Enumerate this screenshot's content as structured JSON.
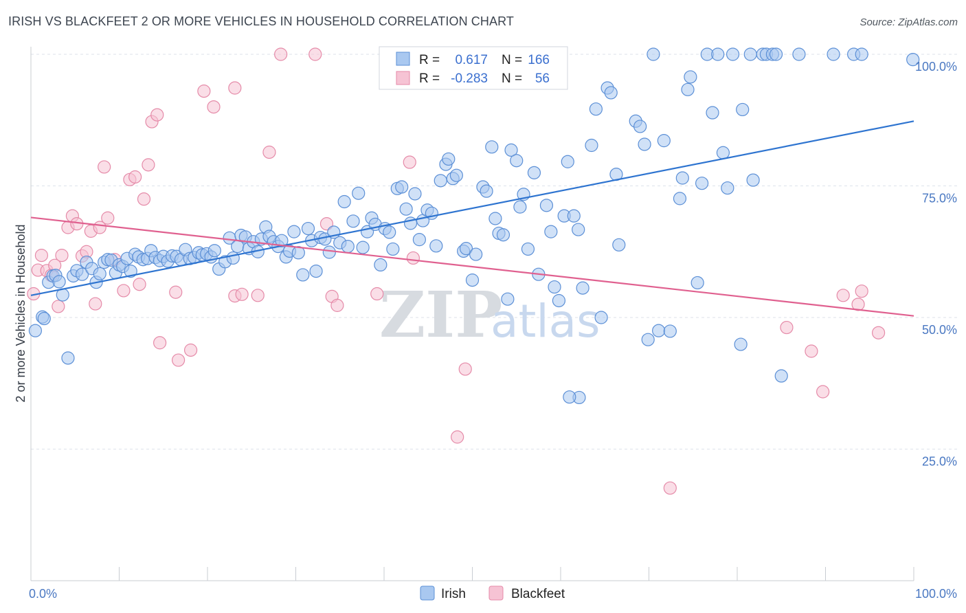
{
  "title": "IRISH VS BLACKFEET 2 OR MORE VEHICLES IN HOUSEHOLD CORRELATION CHART",
  "source": "Source: ZipAtlas.com",
  "watermark": {
    "zip": "ZIP",
    "atlas": "atlas"
  },
  "colors": {
    "irish_fill": "#a9c8f0",
    "irish_stroke": "#5b8fd6",
    "irish_line": "#2e74d0",
    "blackfeet_fill": "#f6c3d4",
    "blackfeet_stroke": "#e58aa8",
    "blackfeet_line": "#e0608f",
    "grid": "#dde2ea",
    "tick_text": "#4a78c2"
  },
  "stats": [
    {
      "series": "Irish",
      "r_label": "R =",
      "r_value": "0.617",
      "n_label": "N =",
      "n_value": "166"
    },
    {
      "series": "Blackfeet",
      "r_label": "R =",
      "r_value": "-0.283",
      "n_label": "N =",
      "n_value": "56"
    }
  ],
  "chart_data": {
    "type": "scatter",
    "title": "IRISH VS BLACKFEET 2 OR MORE VEHICLES IN HOUSEHOLD CORRELATION CHART",
    "xlabel": "",
    "ylabel": "2 or more Vehicles in Household",
    "xlim": [
      0,
      100
    ],
    "ylim": [
      0,
      103
    ],
    "x_tick_labels": [
      "0.0%",
      "100.0%"
    ],
    "y_ticks": [
      25,
      50,
      75,
      100
    ],
    "y_tick_labels": [
      "25.0%",
      "50.0%",
      "75.0%",
      "100.0%"
    ],
    "legend": [
      "Irish",
      "Blackfeet"
    ],
    "series": [
      {
        "name": "Irish",
        "trend": {
          "x": [
            0,
            100
          ],
          "y": [
            54.2,
            87.3
          ]
        },
        "points": [
          [
            0.5,
            47.5
          ],
          [
            1.3,
            50.1
          ],
          [
            1.5,
            49.8
          ],
          [
            2.0,
            56.7
          ],
          [
            2.5,
            57.9
          ],
          [
            2.8,
            58.0
          ],
          [
            3.2,
            56.8
          ],
          [
            3.6,
            54.3
          ],
          [
            4.2,
            42.3
          ],
          [
            4.8,
            57.9
          ],
          [
            5.2,
            58.9
          ],
          [
            5.8,
            58.2
          ],
          [
            6.3,
            60.5
          ],
          [
            6.9,
            59.3
          ],
          [
            7.4,
            56.7
          ],
          [
            7.8,
            58.3
          ],
          [
            8.3,
            60.5
          ],
          [
            8.7,
            61.0
          ],
          [
            9.1,
            60.9
          ],
          [
            9.6,
            58.5
          ],
          [
            10.0,
            60.0
          ],
          [
            10.4,
            59.7
          ],
          [
            10.9,
            61.2
          ],
          [
            11.3,
            58.8
          ],
          [
            11.8,
            62.0
          ],
          [
            12.2,
            61.5
          ],
          [
            12.7,
            61.0
          ],
          [
            13.2,
            61.2
          ],
          [
            13.6,
            62.7
          ],
          [
            14.1,
            61.4
          ],
          [
            14.6,
            60.8
          ],
          [
            15.0,
            61.6
          ],
          [
            15.5,
            60.7
          ],
          [
            16.0,
            61.7
          ],
          [
            16.5,
            61.6
          ],
          [
            17.0,
            61.0
          ],
          [
            17.5,
            62.9
          ],
          [
            18.0,
            61.2
          ],
          [
            18.5,
            61.4
          ],
          [
            19.0,
            62.3
          ],
          [
            19.4,
            61.9
          ],
          [
            19.9,
            62.1
          ],
          [
            20.4,
            61.5
          ],
          [
            20.8,
            62.7
          ],
          [
            21.3,
            59.2
          ],
          [
            22.0,
            60.6
          ],
          [
            22.5,
            65.1
          ],
          [
            22.9,
            61.3
          ],
          [
            23.4,
            63.5
          ],
          [
            23.8,
            65.6
          ],
          [
            24.3,
            65.3
          ],
          [
            24.7,
            63.1
          ],
          [
            25.2,
            64.4
          ],
          [
            25.7,
            62.5
          ],
          [
            26.1,
            64.9
          ],
          [
            26.6,
            67.2
          ],
          [
            27.0,
            65.4
          ],
          [
            27.5,
            64.4
          ],
          [
            28.0,
            63.5
          ],
          [
            28.4,
            64.6
          ],
          [
            28.9,
            61.5
          ],
          [
            29.3,
            62.6
          ],
          [
            29.8,
            66.3
          ],
          [
            30.3,
            62.3
          ],
          [
            30.8,
            58.1
          ],
          [
            31.4,
            66.9
          ],
          [
            31.8,
            64.6
          ],
          [
            32.3,
            58.8
          ],
          [
            32.8,
            65.2
          ],
          [
            33.3,
            64.9
          ],
          [
            33.8,
            62.4
          ],
          [
            34.3,
            66.2
          ],
          [
            35.0,
            64.2
          ],
          [
            35.5,
            72.0
          ],
          [
            35.9,
            63.5
          ],
          [
            36.5,
            68.3
          ],
          [
            37.1,
            73.6
          ],
          [
            37.6,
            63.3
          ],
          [
            38.1,
            66.3
          ],
          [
            38.6,
            68.9
          ],
          [
            39.0,
            67.7
          ],
          [
            39.6,
            60.0
          ],
          [
            40.1,
            66.9
          ],
          [
            40.6,
            66.2
          ],
          [
            41.0,
            63.0
          ],
          [
            41.5,
            74.5
          ],
          [
            42.0,
            74.8
          ],
          [
            42.5,
            70.6
          ],
          [
            43.0,
            67.9
          ],
          [
            43.5,
            73.5
          ],
          [
            44.0,
            64.8
          ],
          [
            44.4,
            68.4
          ],
          [
            44.9,
            70.4
          ],
          [
            45.4,
            69.8
          ],
          [
            45.9,
            63.6
          ],
          [
            46.4,
            76.0
          ],
          [
            47.0,
            79.1
          ],
          [
            47.3,
            80.1
          ],
          [
            47.8,
            76.4
          ],
          [
            48.2,
            77.0
          ],
          [
            49.0,
            62.6
          ],
          [
            49.3,
            63.1
          ],
          [
            50.0,
            57.1
          ],
          [
            50.4,
            62.0
          ],
          [
            51.2,
            74.8
          ],
          [
            51.6,
            74.0
          ],
          [
            52.2,
            82.4
          ],
          [
            52.6,
            68.8
          ],
          [
            53.0,
            66.0
          ],
          [
            53.5,
            65.7
          ],
          [
            54.0,
            53.5
          ],
          [
            54.4,
            81.8
          ],
          [
            55.0,
            79.8
          ],
          [
            55.4,
            71.0
          ],
          [
            55.8,
            73.4
          ],
          [
            56.3,
            63.0
          ],
          [
            57.0,
            77.5
          ],
          [
            57.5,
            58.2
          ],
          [
            58.4,
            71.3
          ],
          [
            58.9,
            66.3
          ],
          [
            59.3,
            55.8
          ],
          [
            59.8,
            53.2
          ],
          [
            60.4,
            69.3
          ],
          [
            60.8,
            79.6
          ],
          [
            61.5,
            69.3
          ],
          [
            62.0,
            66.7
          ],
          [
            62.5,
            55.6
          ],
          [
            63.5,
            82.7
          ],
          [
            64.0,
            89.6
          ],
          [
            64.6,
            50.0
          ],
          [
            65.3,
            93.6
          ],
          [
            65.7,
            92.7
          ],
          [
            66.3,
            77.2
          ],
          [
            66.6,
            63.8
          ],
          [
            68.5,
            87.3
          ],
          [
            69.0,
            86.3
          ],
          [
            69.5,
            82.9
          ],
          [
            69.9,
            45.8
          ],
          [
            70.5,
            100.0
          ],
          [
            71.1,
            47.5
          ],
          [
            71.7,
            83.6
          ],
          [
            72.4,
            47.4
          ],
          [
            73.5,
            72.6
          ],
          [
            73.8,
            76.5
          ],
          [
            74.4,
            93.3
          ],
          [
            74.7,
            95.7
          ],
          [
            75.5,
            56.6
          ],
          [
            76.0,
            75.5
          ],
          [
            76.6,
            100.0
          ],
          [
            77.2,
            88.9
          ],
          [
            77.8,
            100.0
          ],
          [
            78.4,
            81.3
          ],
          [
            78.9,
            74.6
          ],
          [
            79.5,
            100.0
          ],
          [
            80.4,
            44.9
          ],
          [
            80.6,
            89.5
          ],
          [
            81.5,
            100.0
          ],
          [
            81.8,
            76.1
          ],
          [
            82.9,
            100.0
          ],
          [
            83.3,
            100.0
          ],
          [
            84.0,
            100.0
          ],
          [
            84.4,
            100.0
          ],
          [
            85.0,
            38.9
          ],
          [
            87.0,
            100.0
          ],
          [
            90.9,
            100.0
          ],
          [
            93.2,
            100.0
          ],
          [
            94.1,
            100.0
          ],
          [
            62.1,
            34.8
          ],
          [
            61.0,
            34.9
          ],
          [
            99.9,
            99.0
          ]
        ]
      },
      {
        "name": "Blackfeet",
        "trend": {
          "x": [
            0,
            100
          ],
          "y": [
            69.0,
            50.3
          ]
        },
        "points": [
          [
            0.3,
            54.5
          ],
          [
            0.8,
            59.0
          ],
          [
            1.2,
            61.8
          ],
          [
            1.8,
            58.9
          ],
          [
            2.3,
            58.0
          ],
          [
            2.7,
            59.9
          ],
          [
            3.1,
            52.1
          ],
          [
            3.5,
            61.8
          ],
          [
            4.2,
            67.1
          ],
          [
            4.7,
            69.3
          ],
          [
            5.2,
            67.8
          ],
          [
            5.8,
            61.7
          ],
          [
            6.3,
            62.5
          ],
          [
            6.8,
            66.4
          ],
          [
            7.3,
            52.6
          ],
          [
            7.8,
            67.1
          ],
          [
            8.3,
            78.6
          ],
          [
            8.7,
            68.9
          ],
          [
            9.5,
            61.0
          ],
          [
            10.5,
            55.1
          ],
          [
            11.2,
            76.2
          ],
          [
            11.8,
            76.7
          ],
          [
            12.3,
            56.3
          ],
          [
            12.8,
            72.5
          ],
          [
            13.3,
            79.0
          ],
          [
            13.7,
            87.2
          ],
          [
            14.3,
            88.5
          ],
          [
            14.6,
            45.2
          ],
          [
            16.4,
            54.8
          ],
          [
            16.7,
            41.9
          ],
          [
            18.1,
            43.8
          ],
          [
            19.6,
            93.0
          ],
          [
            20.7,
            90.0
          ],
          [
            23.1,
            54.1
          ],
          [
            23.9,
            54.4
          ],
          [
            25.7,
            54.2
          ],
          [
            28.3,
            100.0
          ],
          [
            32.2,
            100.0
          ],
          [
            33.5,
            67.8
          ],
          [
            34.1,
            54.0
          ],
          [
            34.7,
            52.3
          ],
          [
            39.2,
            54.5
          ],
          [
            42.9,
            79.5
          ],
          [
            43.3,
            61.3
          ],
          [
            49.2,
            40.2
          ],
          [
            48.3,
            27.3
          ],
          [
            72.4,
            17.6
          ],
          [
            85.6,
            48.1
          ],
          [
            88.4,
            43.6
          ],
          [
            89.7,
            35.9
          ],
          [
            92.0,
            54.2
          ],
          [
            93.7,
            52.5
          ],
          [
            94.1,
            55.0
          ],
          [
            96.0,
            47.1
          ],
          [
            27.0,
            81.4
          ],
          [
            23.1,
            93.6
          ]
        ]
      }
    ]
  }
}
